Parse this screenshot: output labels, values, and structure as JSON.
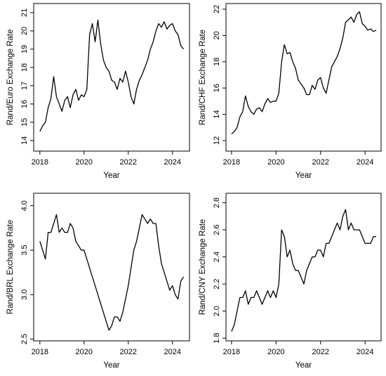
{
  "chart_data": [
    {
      "type": "line",
      "ylabel": "Rand/Euro Exchange Rate",
      "xlabel": "Year",
      "color": "#000000",
      "x": [
        2018.0,
        2018.125,
        2018.25,
        2018.375,
        2018.5,
        2018.625,
        2018.75,
        2018.875,
        2019.0,
        2019.125,
        2019.25,
        2019.375,
        2019.5,
        2019.625,
        2019.75,
        2019.875,
        2020.0,
        2020.125,
        2020.25,
        2020.375,
        2020.5,
        2020.625,
        2020.75,
        2020.875,
        2021.0,
        2021.125,
        2021.25,
        2021.375,
        2021.5,
        2021.625,
        2021.75,
        2021.875,
        2022.0,
        2022.125,
        2022.25,
        2022.375,
        2022.5,
        2022.625,
        2022.75,
        2022.875,
        2023.0,
        2023.125,
        2023.25,
        2023.375,
        2023.5,
        2023.625,
        2023.75,
        2023.875,
        2024.0,
        2024.125,
        2024.25,
        2024.375,
        2024.5
      ],
      "values": [
        14.5,
        14.8,
        15.0,
        15.8,
        16.3,
        17.5,
        16.4,
        16.0,
        15.6,
        16.2,
        16.4,
        15.8,
        16.5,
        16.8,
        16.2,
        16.5,
        16.4,
        16.8,
        19.8,
        20.4,
        19.4,
        20.6,
        19.3,
        18.4,
        18.0,
        17.8,
        17.3,
        17.2,
        16.8,
        17.4,
        17.2,
        17.8,
        17.2,
        16.4,
        16.0,
        16.8,
        17.3,
        17.6,
        18.0,
        18.4,
        19.0,
        19.4,
        20.0,
        20.4,
        20.2,
        20.5,
        20.1,
        20.3,
        20.4,
        20.0,
        19.8,
        19.2,
        19.0
      ],
      "xlim": [
        2017.72,
        2024.77
      ],
      "xticks": [
        2018,
        2020,
        2022,
        2024
      ],
      "ylim": [
        13.42,
        21.5
      ],
      "yticks": [
        14,
        15,
        16,
        17,
        18,
        19,
        20,
        21
      ]
    },
    {
      "type": "line",
      "ylabel": "Rand/CHF Exchange Rate",
      "xlabel": "Year",
      "color": "#000000",
      "x": [
        2018.0,
        2018.125,
        2018.25,
        2018.375,
        2018.5,
        2018.625,
        2018.75,
        2018.875,
        2019.0,
        2019.125,
        2019.25,
        2019.375,
        2019.5,
        2019.625,
        2019.75,
        2019.875,
        2020.0,
        2020.125,
        2020.25,
        2020.375,
        2020.5,
        2020.625,
        2020.75,
        2020.875,
        2021.0,
        2021.125,
        2021.25,
        2021.375,
        2021.5,
        2021.625,
        2021.75,
        2021.875,
        2022.0,
        2022.125,
        2022.25,
        2022.375,
        2022.5,
        2022.625,
        2022.75,
        2022.875,
        2023.0,
        2023.125,
        2023.25,
        2023.375,
        2023.5,
        2023.625,
        2023.75,
        2023.875,
        2024.0,
        2024.125,
        2024.25,
        2024.375,
        2024.5
      ],
      "values": [
        12.5,
        12.7,
        13.0,
        13.8,
        14.2,
        15.4,
        14.6,
        14.2,
        14.0,
        14.4,
        14.5,
        14.2,
        14.8,
        15.2,
        14.9,
        15.0,
        15.0,
        15.6,
        18.0,
        19.3,
        18.6,
        18.7,
        18.0,
        17.5,
        16.6,
        16.3,
        16.0,
        15.5,
        15.5,
        16.2,
        15.9,
        16.6,
        16.8,
        16.0,
        15.6,
        16.6,
        17.6,
        18.0,
        18.4,
        19.0,
        19.8,
        21.0,
        21.2,
        21.4,
        21.0,
        21.6,
        21.8,
        20.9,
        20.7,
        20.4,
        20.5,
        20.3,
        20.4
      ],
      "xlim": [
        2017.75,
        2024.72
      ],
      "xticks": [
        2018,
        2020,
        2022,
        2024
      ],
      "ylim": [
        11.2,
        22.43
      ],
      "yticks": [
        12,
        14,
        16,
        18,
        20,
        22
      ]
    },
    {
      "type": "line",
      "ylabel": "Rand/BRL Exchange Rate",
      "xlabel": "Year",
      "color": "#000000",
      "x": [
        2018.0,
        2018.125,
        2018.25,
        2018.375,
        2018.5,
        2018.625,
        2018.75,
        2018.875,
        2019.0,
        2019.125,
        2019.25,
        2019.375,
        2019.5,
        2019.625,
        2019.75,
        2019.875,
        2020.0,
        2020.125,
        2020.25,
        2020.375,
        2020.5,
        2020.625,
        2020.75,
        2020.875,
        2021.0,
        2021.125,
        2021.25,
        2021.375,
        2021.5,
        2021.625,
        2021.75,
        2021.875,
        2022.0,
        2022.125,
        2022.25,
        2022.375,
        2022.5,
        2022.625,
        2022.75,
        2022.875,
        2023.0,
        2023.125,
        2023.25,
        2023.375,
        2023.5,
        2023.625,
        2023.75,
        2023.875,
        2024.0,
        2024.125,
        2024.25,
        2024.375,
        2024.5
      ],
      "values": [
        3.6,
        3.5,
        3.4,
        3.7,
        3.7,
        3.8,
        3.9,
        3.7,
        3.75,
        3.7,
        3.7,
        3.8,
        3.75,
        3.6,
        3.55,
        3.5,
        3.5,
        3.4,
        3.3,
        3.2,
        3.1,
        3.0,
        2.9,
        2.8,
        2.7,
        2.6,
        2.65,
        2.75,
        2.75,
        2.7,
        2.8,
        2.95,
        3.1,
        3.3,
        3.5,
        3.6,
        3.75,
        3.9,
        3.85,
        3.8,
        3.85,
        3.8,
        3.8,
        3.55,
        3.35,
        3.25,
        3.15,
        3.05,
        3.1,
        3.0,
        2.95,
        3.15,
        3.2
      ],
      "xlim": [
        2017.72,
        2024.77
      ],
      "xticks": [
        2018,
        2020,
        2022,
        2024
      ],
      "ylim": [
        2.48,
        4.14
      ],
      "yticks": [
        2.5,
        {
          "value": 3,
          "label": "3.0"
        },
        3.5,
        {
          "value": 4,
          "label": "4.0"
        }
      ]
    },
    {
      "type": "line",
      "ylabel": "Rand/CNY Exchange Rate",
      "xlabel": "Year",
      "color": "#000000",
      "x": [
        2018.0,
        2018.125,
        2018.25,
        2018.375,
        2018.5,
        2018.625,
        2018.75,
        2018.875,
        2019.0,
        2019.125,
        2019.25,
        2019.375,
        2019.5,
        2019.625,
        2019.75,
        2019.875,
        2020.0,
        2020.125,
        2020.25,
        2020.375,
        2020.5,
        2020.625,
        2020.75,
        2020.875,
        2021.0,
        2021.125,
        2021.25,
        2021.375,
        2021.5,
        2021.625,
        2021.75,
        2021.875,
        2022.0,
        2022.125,
        2022.25,
        2022.375,
        2022.5,
        2022.625,
        2022.75,
        2022.875,
        2023.0,
        2023.125,
        2023.25,
        2023.375,
        2023.5,
        2023.625,
        2023.75,
        2023.875,
        2024.0,
        2024.125,
        2024.25,
        2024.375,
        2024.5
      ],
      "values": [
        1.85,
        1.9,
        2.0,
        2.1,
        2.1,
        2.15,
        2.05,
        2.1,
        2.1,
        2.15,
        2.1,
        2.05,
        2.1,
        2.15,
        2.1,
        2.15,
        2.1,
        2.2,
        2.6,
        2.55,
        2.4,
        2.45,
        2.35,
        2.3,
        2.3,
        2.25,
        2.2,
        2.3,
        2.35,
        2.4,
        2.4,
        2.45,
        2.45,
        2.4,
        2.5,
        2.5,
        2.55,
        2.6,
        2.65,
        2.6,
        2.7,
        2.75,
        2.6,
        2.65,
        2.6,
        2.6,
        2.6,
        2.55,
        2.5,
        2.5,
        2.5,
        2.55,
        2.55
      ],
      "xlim": [
        2017.75,
        2024.72
      ],
      "xticks": [
        2018,
        2020,
        2022,
        2024
      ],
      "ylim": [
        1.78,
        2.87
      ],
      "yticks": [
        1.8,
        {
          "value": 2,
          "label": "2.0"
        },
        2.2,
        2.4,
        2.6,
        2.8
      ]
    }
  ]
}
